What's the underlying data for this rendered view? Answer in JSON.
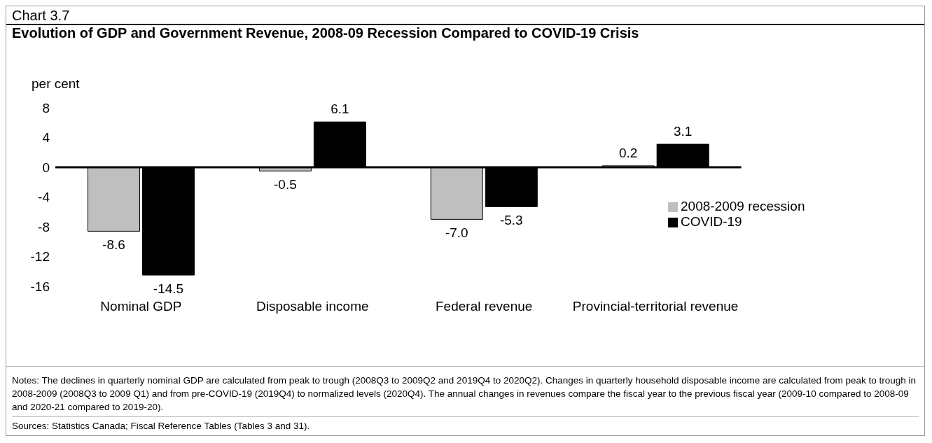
{
  "chart_data": {
    "type": "bar",
    "title": "Evolution of GDP and Government Revenue, 2008-09 Recession Compared to COVID-19 Crisis",
    "ylabel": "per cent",
    "categories": [
      "Nominal GDP",
      "Disposable income",
      "Federal revenue",
      "Provincial-territorial revenue"
    ],
    "series": [
      {
        "name": "2008-2009 recession",
        "color": "#bfbfbf",
        "values": [
          -8.6,
          -0.5,
          -7.0,
          0.2
        ],
        "value_labels": [
          "-8.6",
          "-0.5",
          "-7.0",
          "0.2"
        ]
      },
      {
        "name": "COVID-19",
        "color": "#000000",
        "values": [
          -14.5,
          6.1,
          -5.3,
          3.1
        ],
        "value_labels": [
          "-14.5",
          "6.1",
          "-5.3",
          "3.1"
        ]
      }
    ],
    "ylim": [
      -16,
      8
    ],
    "yticks": [
      -16,
      -12,
      -8,
      -4,
      0,
      4,
      8
    ],
    "legend": "right",
    "annotations": [
      "Chart 3.7",
      "Notes:  The declines in quarterly nominal GDP are calculated from peak to trough (2008Q3 to 2009Q2 and 2019Q4 to 2020Q2). Changes in quarterly household disposable income are calculated from peak to trough in 2008-2009 (2008Q3 to 2009 Q1) and from pre-COVID-19 (2019Q4) to normalized levels (2020Q4). The annual changes in revenues compare the fiscal year to the previous fiscal year (2009-10 compared to 2008-09 and 2020-21 compared to 2019-20).",
      "Sources: Statistics Canada; Fiscal Reference Tables (Tables 3 and 31)."
    ]
  }
}
